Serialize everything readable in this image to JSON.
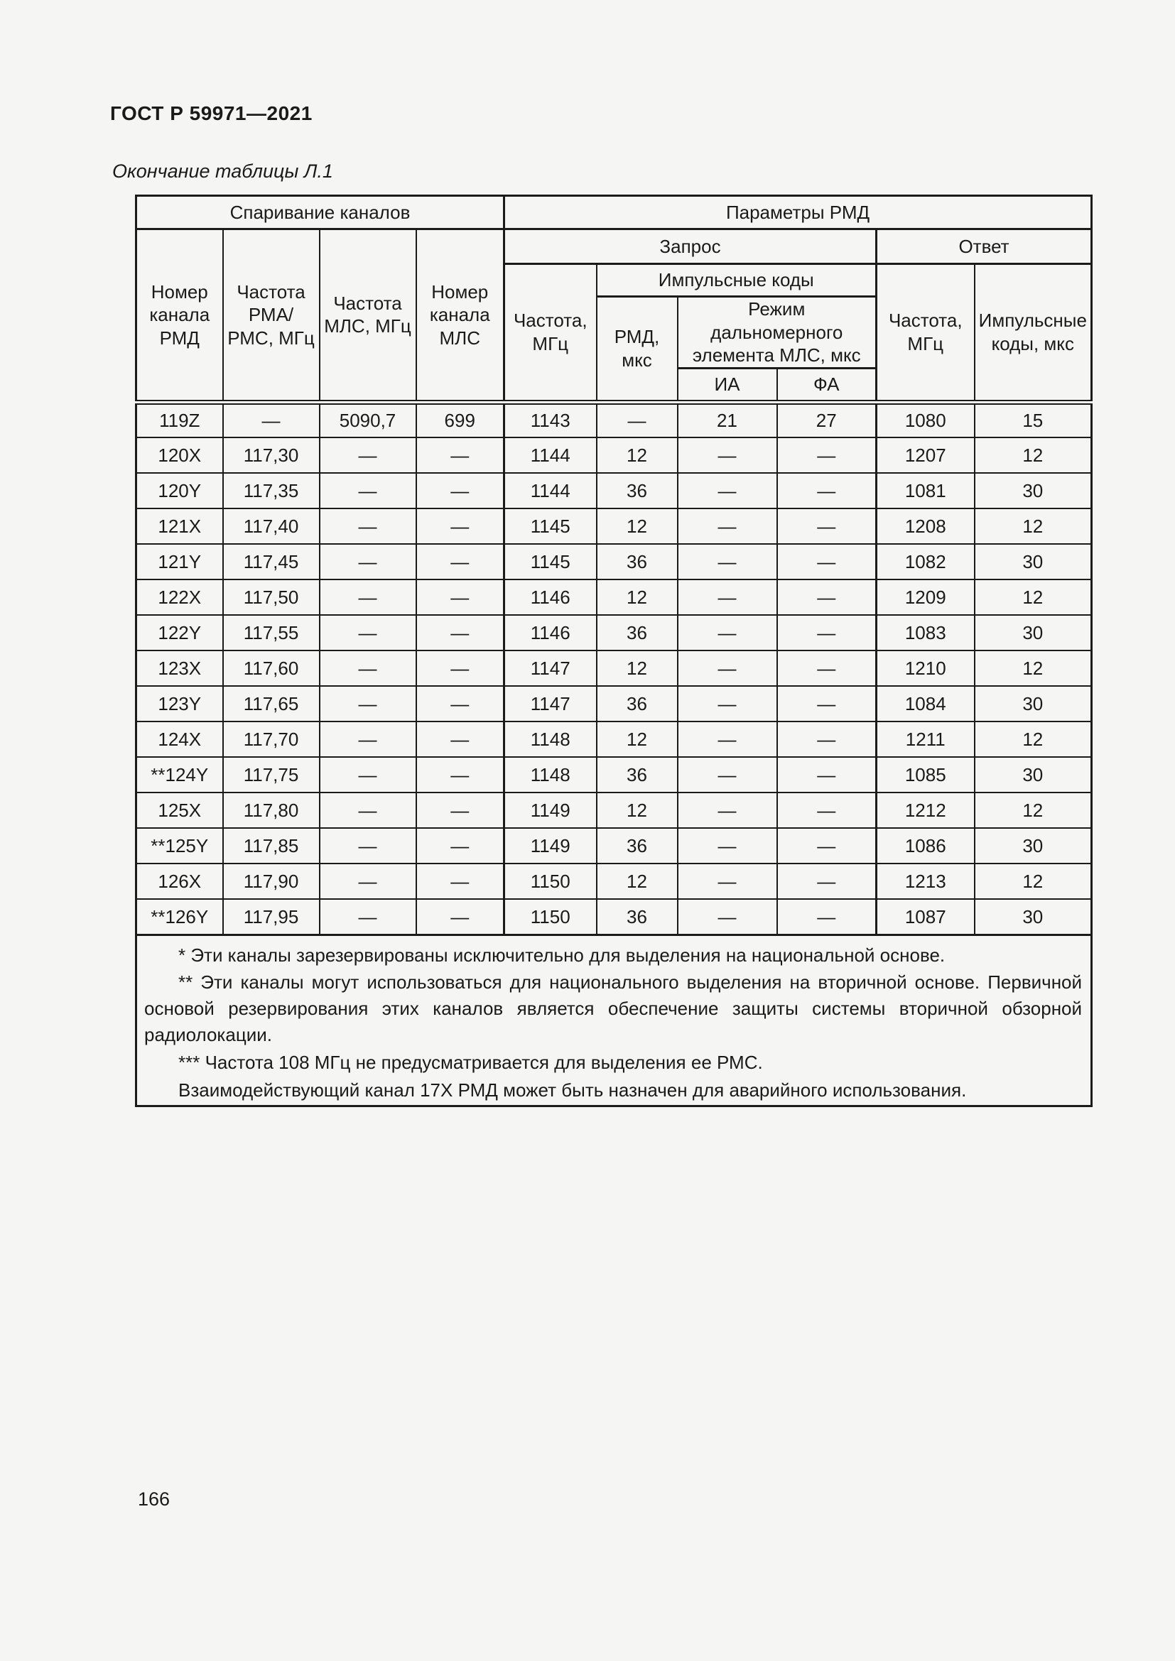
{
  "page": {
    "doc_code": "ГОСТ Р 59971—2021",
    "table_caption": "Окончание таблицы Л.1",
    "page_number": "166"
  },
  "table": {
    "groups": {
      "pairing": "Спаривание каналов",
      "rmd_params": "Параметры РМД",
      "request": "Запрос",
      "response": "Ответ",
      "pulse_codes": "Импульсные коды",
      "mls_range_mode": "Режим дальномерного\nэлемента МЛС, мкс"
    },
    "columns": {
      "channel_rmd": "Номер\nканала\nРМД",
      "freq_rma_rms": "Частота\nРМА/\nРМС, МГц",
      "freq_mls": "Частота\nМЛС, МГц",
      "channel_mls": "Номер\nканала\nМЛС",
      "freq_request": "Частота,\nМГц",
      "rmd_mks": "РМД,\nмкс",
      "ia": "ИА",
      "fa": "ФА",
      "freq_response": "Частота,\nМГц",
      "pulse_codes_response": "Импульсные\nкоды, мкс"
    },
    "rows": [
      [
        "119Z",
        "—",
        "5090,7",
        "699",
        "1143",
        "—",
        "21",
        "27",
        "1080",
        "15"
      ],
      [
        "120X",
        "117,30",
        "—",
        "—",
        "1144",
        "12",
        "—",
        "—",
        "1207",
        "12"
      ],
      [
        "120Y",
        "117,35",
        "—",
        "—",
        "1144",
        "36",
        "—",
        "—",
        "1081",
        "30"
      ],
      [
        "121X",
        "117,40",
        "—",
        "—",
        "1145",
        "12",
        "—",
        "—",
        "1208",
        "12"
      ],
      [
        "121Y",
        "117,45",
        "—",
        "—",
        "1145",
        "36",
        "—",
        "—",
        "1082",
        "30"
      ],
      [
        "122X",
        "117,50",
        "—",
        "—",
        "1146",
        "12",
        "—",
        "—",
        "1209",
        "12"
      ],
      [
        "122Y",
        "117,55",
        "—",
        "—",
        "1146",
        "36",
        "—",
        "—",
        "1083",
        "30"
      ],
      [
        "123X",
        "117,60",
        "—",
        "—",
        "1147",
        "12",
        "—",
        "—",
        "1210",
        "12"
      ],
      [
        "123Y",
        "117,65",
        "—",
        "—",
        "1147",
        "36",
        "—",
        "—",
        "1084",
        "30"
      ],
      [
        "124X",
        "117,70",
        "—",
        "—",
        "1148",
        "12",
        "—",
        "—",
        "1211",
        "12"
      ],
      [
        "**124Y",
        "117,75",
        "—",
        "—",
        "1148",
        "36",
        "—",
        "—",
        "1085",
        "30"
      ],
      [
        "125X",
        "117,80",
        "—",
        "—",
        "1149",
        "12",
        "—",
        "—",
        "1212",
        "12"
      ],
      [
        "**125Y",
        "117,85",
        "—",
        "—",
        "1149",
        "36",
        "—",
        "—",
        "1086",
        "30"
      ],
      [
        "126X",
        "117,90",
        "—",
        "—",
        "1150",
        "12",
        "—",
        "—",
        "1213",
        "12"
      ],
      [
        "**126Y",
        "117,95",
        "—",
        "—",
        "1150",
        "36",
        "—",
        "—",
        "1087",
        "30"
      ]
    ],
    "footnotes": [
      "* Эти каналы зарезервированы исключительно для выделения на национальной основе.",
      "** Эти каналы могут использоваться для национального выделения на вторичной основе. Первичной основой резервирования этих каналов является обеспечение защиты системы вторичной обзорной радиолокации.",
      "*** Частота 108 МГц не предусматривается для выделения ее РМС.",
      "Взаимодействующий канал 17X РМД может быть назначен для аварийного использования."
    ]
  },
  "colors": {
    "text": "#1a1a1a",
    "border": "#1b1b1b",
    "page_background": "#f5f5f4"
  }
}
